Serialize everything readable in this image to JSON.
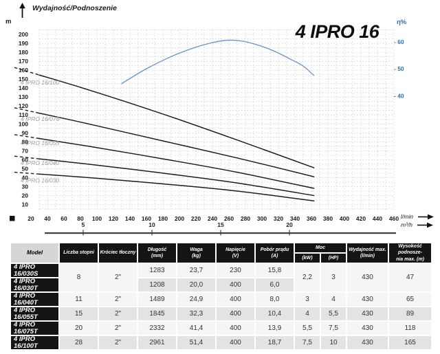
{
  "chart": {
    "header_label": "Wydajność/Podnoszenie",
    "y_unit": "m",
    "title": "4 IPRO 16",
    "eta_label": "η%",
    "x_unit_primary": "l/min",
    "x_unit_secondary": "m³/h"
  },
  "chart_data": {
    "type": "line",
    "title": "4 IPRO 16",
    "ylabel": "Wydajność/Podnoszenie (m)",
    "xlabel": "l/min, m³/h",
    "y_axis": {
      "unit": "m",
      "min": 10,
      "max": 200,
      "tick_step": 10
    },
    "x_axis": {
      "unit": "l/min",
      "tick_start": 20,
      "tick_end": 460,
      "tick_step": 20
    },
    "x2_axis": {
      "unit": "m³/h",
      "ticks": [
        5,
        10,
        15,
        20
      ],
      "lpm_per_unit": 16.6667
    },
    "eta_axis": {
      "label": "η%",
      "ticks": [
        60,
        50,
        40
      ]
    },
    "grid": "dashed",
    "head_curves": [
      {
        "label": "4 IPRO 16/100",
        "label_dy": 25,
        "dash_until": 30,
        "points": [
          [
            0,
            163
          ],
          [
            90,
            138
          ],
          [
            180,
            111
          ],
          [
            270,
            82
          ],
          [
            363,
            51
          ]
        ]
      },
      {
        "label": "4 IPRO 16/075",
        "label_dy": 19,
        "dash_until": 30,
        "points": [
          [
            0,
            118
          ],
          [
            90,
            100
          ],
          [
            180,
            81
          ],
          [
            270,
            62
          ],
          [
            363,
            41
          ]
        ]
      },
      {
        "label": "4 IPRO 16/055",
        "label_dy": 15,
        "dash_until": 30,
        "points": [
          [
            0,
            88
          ],
          [
            90,
            75
          ],
          [
            180,
            61
          ],
          [
            270,
            46
          ],
          [
            363,
            28
          ]
        ]
      },
      {
        "label": "4 IPRO 16/040",
        "label_dy": 13,
        "dash_until": 30,
        "points": [
          [
            0,
            64
          ],
          [
            90,
            55
          ],
          [
            180,
            45
          ],
          [
            270,
            34
          ],
          [
            363,
            20
          ]
        ]
      },
      {
        "label": "4 IPRO 16/030",
        "label_dy": 15,
        "dash_until": 30,
        "points": [
          [
            0,
            46
          ],
          [
            90,
            40
          ],
          [
            180,
            33
          ],
          [
            270,
            25
          ],
          [
            363,
            14
          ]
        ]
      }
    ],
    "efficiency_curve": {
      "unit": "%",
      "points": [
        [
          130,
          44.5
        ],
        [
          160,
          50
        ],
        [
          190,
          54.5
        ],
        [
          215,
          57.5
        ],
        [
          235,
          59.3
        ],
        [
          255,
          60.5
        ],
        [
          275,
          60.3
        ],
        [
          295,
          58.8
        ],
        [
          315,
          56.5
        ],
        [
          335,
          53.5
        ],
        [
          350,
          51
        ],
        [
          363,
          47.5
        ]
      ]
    },
    "colors": {
      "head_curve": "#1c1c1c",
      "efficiency": "#6593c9",
      "grid": "#cbcbcb",
      "axis_text": "#1a1a1a",
      "curve_label": "#9a9a9a",
      "eta_text": "#2e6db4",
      "scale_line": "#3f3f3f"
    }
  },
  "table": {
    "header": {
      "model": "Model",
      "stages": "Liczba stopni",
      "outlet": "Króciec tłoczny",
      "length": "Długość\n(mm)",
      "weight": "Waga\n(kg)",
      "voltage": "Napięcie\n(V)",
      "current": "Pobór prądu\n(A)",
      "power": "Moc",
      "kw": "(kW)",
      "hp": "(HP)",
      "qmax": "Wydajność max.\n(l/min)",
      "hmax": "Wysokość podnosze-\nnia max. (m)"
    },
    "rows": [
      {
        "model": "4 IPRO 16/030S",
        "cells": {
          "stages": {
            "v": "8",
            "rs": 2
          },
          "outlet": {
            "v": "2\"",
            "rs": 2
          },
          "length": {
            "v": "1283"
          },
          "weight": {
            "v": "23,7"
          },
          "voltage": {
            "v": "230"
          },
          "current": {
            "v": "15,8"
          },
          "kw": {
            "v": "2,2",
            "rs": 2
          },
          "hp": {
            "v": "3",
            "rs": 2
          },
          "qmax": {
            "v": "430",
            "rs": 2
          },
          "hmax": {
            "v": "47",
            "rs": 2
          }
        }
      },
      {
        "model": "4 IPRO 16/030T",
        "cells": {
          "length": {
            "v": "1208"
          },
          "weight": {
            "v": "20,0"
          },
          "voltage": {
            "v": "400"
          },
          "current": {
            "v": "6,0"
          }
        }
      },
      {
        "model": "4 IPRO 16/040T",
        "cells": {
          "stages": {
            "v": "11"
          },
          "outlet": {
            "v": "2\""
          },
          "length": {
            "v": "1489"
          },
          "weight": {
            "v": "24,9"
          },
          "voltage": {
            "v": "400"
          },
          "current": {
            "v": "8,0"
          },
          "kw": {
            "v": "3"
          },
          "hp": {
            "v": "4"
          },
          "qmax": {
            "v": "430"
          },
          "hmax": {
            "v": "65"
          }
        }
      },
      {
        "model": "4 IPRO 16/055T",
        "cells": {
          "stages": {
            "v": "15"
          },
          "outlet": {
            "v": "2\""
          },
          "length": {
            "v": "1845"
          },
          "weight": {
            "v": "32,3"
          },
          "voltage": {
            "v": "400"
          },
          "current": {
            "v": "10,4"
          },
          "kw": {
            "v": "4"
          },
          "hp": {
            "v": "5,5"
          },
          "qmax": {
            "v": "430"
          },
          "hmax": {
            "v": "89"
          }
        }
      },
      {
        "model": "4 IPRO 16/075T",
        "cells": {
          "stages": {
            "v": "20"
          },
          "outlet": {
            "v": "2\""
          },
          "length": {
            "v": "2332"
          },
          "weight": {
            "v": "41,4"
          },
          "voltage": {
            "v": "400"
          },
          "current": {
            "v": "13,9"
          },
          "kw": {
            "v": "5,5"
          },
          "hp": {
            "v": "7,5"
          },
          "qmax": {
            "v": "430"
          },
          "hmax": {
            "v": "118"
          }
        }
      },
      {
        "model": "4 IPRO 16/100T",
        "cells": {
          "stages": {
            "v": "28"
          },
          "outlet": {
            "v": "2\""
          },
          "length": {
            "v": "2961"
          },
          "weight": {
            "v": "51,4"
          },
          "voltage": {
            "v": "400"
          },
          "current": {
            "v": "18,7"
          },
          "kw": {
            "v": "7,5"
          },
          "hp": {
            "v": "10"
          },
          "qmax": {
            "v": "430"
          },
          "hmax": {
            "v": "165"
          }
        }
      }
    ]
  }
}
